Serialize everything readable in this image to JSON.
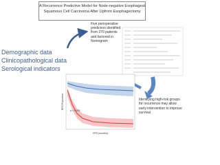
{
  "header": {
    "title": "A Recurrence Predictive Model for Node-negative Esophageal Squamous Cell Carcinoma After Upfront Esophagectomy"
  },
  "inputs": [
    "Demographic data",
    "Clinicopathological data",
    "Serological indicators"
  ],
  "predictors_note": "Five perioperative predictors identified from 270 patients and factored in Nomogram",
  "survival_plot": {
    "y_label": "RFS Proportion",
    "x_label": "RFS (months)",
    "p_value": "p < 0.001"
  },
  "conclusion": "Identifying high-risk groups for recurrence may allow early intervention to improve survival"
}
